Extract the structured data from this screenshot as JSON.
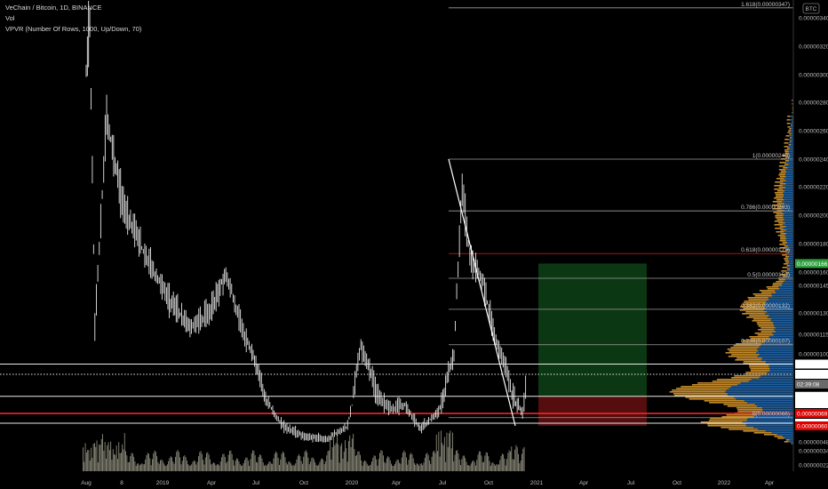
{
  "legend": {
    "symbol": "VeChain / Bitcoin, 1D, BINANCE",
    "volume": "Vol",
    "vpvr": "VPVR (Number Of Rows, 1000, Up/Down, 70)"
  },
  "currency_badge": "BTC",
  "colors": {
    "background": "#000000",
    "price": "#e6e6e6",
    "fib_line": "#9e9e9e",
    "fib_red": "#b02020",
    "profit_zone": "#0d3a14",
    "loss_zone": "#5a0e0e",
    "vp_up": "#1f5fa0",
    "vp_down": "#c48a2a",
    "hline_red": "#ff2a2a",
    "badge_red": "#e00000",
    "badge_green": "#2e9e3e",
    "badge_white": "#ffffff",
    "badge_gray": "#6a6a6a"
  },
  "chart_data": {
    "type": "candlestick",
    "title": "VeChain / Bitcoin, 1D, BINANCE",
    "y_scale": "price in BTC",
    "ylim": [
      2e-07,
      3.6e-06
    ],
    "y_ticks": [
      "0.00000340",
      "0.00000320",
      "0.00000300",
      "0.00000280",
      "0.00000260",
      "0.00000240",
      "0.00000220",
      "0.00000200",
      "0.00000180",
      "0.00000160",
      "0.00000145",
      "0.00000130",
      "0.00000115",
      "0.00000100",
      "0.00000088",
      "0.00000076",
      "0.00000062",
      "0.00000048",
      "0.00000034",
      "0.00000022"
    ],
    "x_ticks": [
      "Aug",
      "8",
      "2019",
      "Apr",
      "Jul",
      "Oct",
      "2020",
      "Apr",
      "Jul",
      "Oct",
      "2021",
      "Apr",
      "Jul",
      "Oct",
      "2022",
      "Apr"
    ],
    "price_path": [
      {
        "t": "2018-08-01",
        "p": 3e-06
      },
      {
        "t": "2018-08-08",
        "p": 3.4e-06
      },
      {
        "t": "2018-08-18",
        "p": 1.2e-06
      },
      {
        "t": "2018-09-10",
        "p": 2.7e-06
      },
      {
        "t": "2018-10-10",
        "p": 2.1e-06
      },
      {
        "t": "2018-11-15",
        "p": 1.8e-06
      },
      {
        "t": "2019-01-05",
        "p": 1.4e-06
      },
      {
        "t": "2019-02-20",
        "p": 1.2e-06
      },
      {
        "t": "2019-04-01",
        "p": 1.3e-06
      },
      {
        "t": "2019-05-01",
        "p": 1.55e-06
      },
      {
        "t": "2019-06-10",
        "p": 1.1e-06
      },
      {
        "t": "2019-07-15",
        "p": 8e-07
      },
      {
        "t": "2019-08-20",
        "p": 6e-07
      },
      {
        "t": "2019-10-01",
        "p": 5.2e-07
      },
      {
        "t": "2019-11-15",
        "p": 5e-07
      },
      {
        "t": "2019-12-25",
        "p": 6e-07
      },
      {
        "t": "2020-01-20",
        "p": 1.05e-06
      },
      {
        "t": "2020-02-20",
        "p": 8e-07
      },
      {
        "t": "2020-03-20",
        "p": 7.2e-07
      },
      {
        "t": "2020-04-15",
        "p": 7.5e-07
      },
      {
        "t": "2020-05-15",
        "p": 5.8e-07
      },
      {
        "t": "2020-06-20",
        "p": 7e-07
      },
      {
        "t": "2020-07-20",
        "p": 1e-06
      },
      {
        "t": "2020-08-05",
        "p": 2.2e-06
      },
      {
        "t": "2020-08-20",
        "p": 1.7e-06
      },
      {
        "t": "2020-09-15",
        "p": 1.5e-06
      },
      {
        "t": "2020-10-10",
        "p": 1.1e-06
      },
      {
        "t": "2020-11-10",
        "p": 8e-07
      },
      {
        "t": "2020-12-01",
        "p": 7e-07
      },
      {
        "t": "2020-12-10",
        "p": 8.8e-07
      }
    ],
    "fib_levels": [
      {
        "label": "1.618(0.00000347)",
        "value": 3.47e-06
      },
      {
        "label": "1(0.00000240)",
        "value": 2.4e-06
      },
      {
        "label": "0.786(0.00000203)",
        "value": 2.03e-06
      },
      {
        "label": "0.618(0.00000173)",
        "value": 1.73e-06,
        "highlight": true
      },
      {
        "label": "0.5(0.00000153)",
        "value": 1.53e-06
      },
      {
        "label": "0.382(0.00000132)",
        "value": 1.32e-06
      },
      {
        "label": "0.236(0.00000107)",
        "value": 1.07e-06
      },
      {
        "label": "0(0.00000066)",
        "value": 6.6e-07
      }
    ],
    "price_badges": [
      {
        "text": "0.00000166",
        "value": 1.66e-06,
        "kind": "green"
      },
      {
        "text": "0.00000094",
        "value": 9.4e-07,
        "kind": "white"
      },
      {
        "text": "0.00000088",
        "value": 8.8e-07,
        "kind": "white"
      },
      {
        "text": "02:39:08",
        "value": 8.4e-07,
        "kind": "gray"
      },
      {
        "text": "0.00000079",
        "value": 7.9e-07,
        "kind": "white"
      },
      {
        "text": "0.00000076",
        "value": 7.6e-07,
        "kind": "white"
      },
      {
        "text": "0.00000069",
        "value": 6.9e-07,
        "kind": "red"
      },
      {
        "text": "0.00000062",
        "value": 6.2e-07,
        "kind": "white"
      },
      {
        "text": "0.00000060",
        "value": 6e-07,
        "kind": "red"
      }
    ],
    "horizontal_lines": [
      {
        "value": 9.4e-07,
        "style": "solid",
        "color": "white"
      },
      {
        "value": 8.8e-07,
        "style": "dotted",
        "color": "white"
      },
      {
        "value": 7.9e-07,
        "style": "solid",
        "color": "white"
      },
      {
        "value": 6.9e-07,
        "style": "solid",
        "color": "red"
      },
      {
        "value": 6.2e-07,
        "style": "solid",
        "color": "white"
      }
    ],
    "trendline": {
      "from": {
        "t": "2020-08-05",
        "p": 2.4e-06
      },
      "to": {
        "t": "2020-12-01",
        "p": 6e-07
      }
    },
    "position": {
      "start": "2021-01-01",
      "end": "2021-06-30",
      "target": 1.66e-06,
      "entry": 7.9e-07,
      "stop": 6e-07
    }
  }
}
